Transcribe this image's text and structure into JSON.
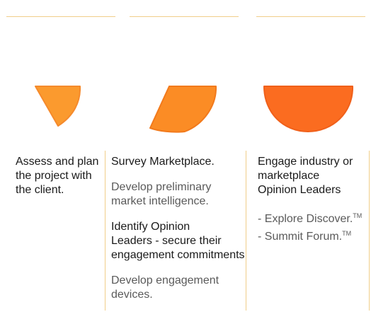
{
  "colors": {
    "line": "#f1ce8a",
    "shape1": "#fb9a2e",
    "shape2": "#fb8c25",
    "shape3": "#fb6c20",
    "shape_stroke": "#f58a2c",
    "text_dark": "#1a1a1a",
    "text_gray": "#5a5a5a"
  },
  "stages": [
    {
      "icon": "triangle-wedge-shape",
      "lines": [
        "Assess and plan",
        "the project with",
        "the client."
      ]
    },
    {
      "icon": "parallelogram-wedge-shape",
      "blocks": [
        {
          "style": "dark",
          "lines": [
            "Survey Marketplace."
          ]
        },
        {
          "style": "gray",
          "lines": [
            "Develop preliminary",
            "market intelligence."
          ]
        },
        {
          "style": "dark",
          "lines": [
            "Identify Opinion",
            "Leaders - secure their",
            "engagement commitments"
          ]
        },
        {
          "style": "gray",
          "lines": [
            "Develop engagement",
            "devices."
          ]
        }
      ]
    },
    {
      "icon": "half-circle-shape",
      "lines": [
        "Engage industry or",
        "marketplace",
        "Opinion Leaders"
      ],
      "bullets": [
        {
          "text": "- Explore Discover.",
          "mark": "TM"
        },
        {
          "text": "- Summit Forum.",
          "mark": "TM"
        }
      ]
    }
  ]
}
